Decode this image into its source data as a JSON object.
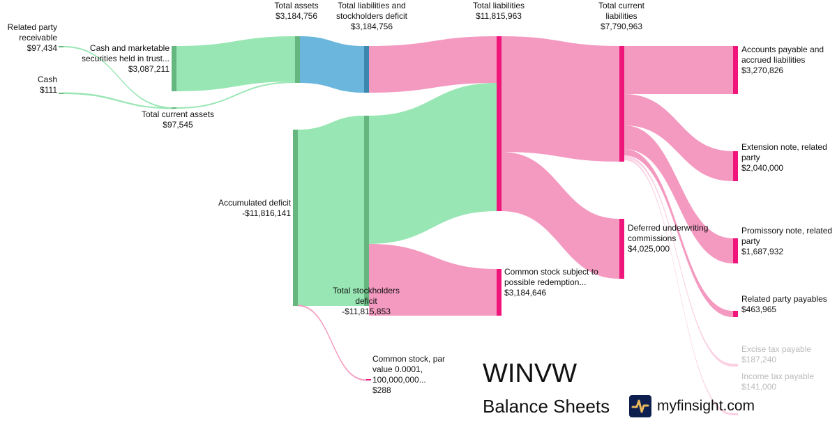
{
  "chart_data": {
    "type": "sankey",
    "title": "WINVW",
    "subtitle": "Balance Sheets",
    "colors": {
      "asset": "#98e6b3",
      "asset_node": "#66b77f",
      "total": "#6ab6dc",
      "total_node": "#3a88ae",
      "liability": "#f49ac0",
      "liability_node": "#f0157a"
    },
    "nodes": [
      {
        "id": "rpr",
        "label": "Related party receivable",
        "value": "$97,434"
      },
      {
        "id": "cash",
        "label": "Cash",
        "value": "$111"
      },
      {
        "id": "cmst",
        "label": "Cash and marketable securities held in trust...",
        "value": "$3,087,211"
      },
      {
        "id": "tca",
        "label": "Total current assets",
        "value": "$97,545"
      },
      {
        "id": "ta",
        "label": "Total assets",
        "value": "$3,184,756"
      },
      {
        "id": "accdef",
        "label": "Accumulated deficit",
        "value": "-$11,816,141"
      },
      {
        "id": "tlsd",
        "label": "Total liabilities and stockholders deficit",
        "value": "$3,184,756"
      },
      {
        "id": "tsd",
        "label": "Total stockholders deficit",
        "value": "-$11,815,853"
      },
      {
        "id": "cspar",
        "label": "Common stock, par value 0.0001, 100,000,000...",
        "value": "$288"
      },
      {
        "id": "tl",
        "label": "Total liabilities",
        "value": "$11,815,963"
      },
      {
        "id": "css",
        "label": "Common stock subject to possible redemption...",
        "value": "$3,184,646"
      },
      {
        "id": "tcl",
        "label": "Total current liabilities",
        "value": "$7,790,963"
      },
      {
        "id": "duc",
        "label": "Deferred underwriting commissions",
        "value": "$4,025,000"
      },
      {
        "id": "ap",
        "label": "Accounts payable and accrued liabilities",
        "value": "$3,270,826"
      },
      {
        "id": "ext",
        "label": "Extension note, related party",
        "value": "$2,040,000"
      },
      {
        "id": "prom",
        "label": "Promissory note, related party",
        "value": "$1,687,932"
      },
      {
        "id": "rpp",
        "label": "Related party payables",
        "value": "$463,965"
      },
      {
        "id": "excise",
        "label": "Excise tax payable",
        "value": "$187,240"
      },
      {
        "id": "income",
        "label": "Income tax payable",
        "value": "$141,000"
      }
    ],
    "links": [
      {
        "source": "rpr",
        "target": "tca",
        "value": 97434
      },
      {
        "source": "cash",
        "target": "tca",
        "value": 111
      },
      {
        "source": "tca",
        "target": "ta",
        "value": 97545
      },
      {
        "source": "cmst",
        "target": "ta",
        "value": 3087211
      },
      {
        "source": "ta",
        "target": "tlsd",
        "value": 3184756
      },
      {
        "source": "tlsd",
        "target": "tl",
        "value": 3184756
      },
      {
        "source": "accdef",
        "target": "tsd",
        "value": -11816141
      },
      {
        "source": "accdef",
        "target": "cspar",
        "value": 288
      },
      {
        "source": "tsd",
        "target": "tl",
        "value": 8631207
      },
      {
        "source": "tsd",
        "target": "css",
        "value": 3184646
      },
      {
        "source": "tl",
        "target": "tcl",
        "value": 7790963
      },
      {
        "source": "tl",
        "target": "duc",
        "value": 4025000
      },
      {
        "source": "tcl",
        "target": "ap",
        "value": 3270826
      },
      {
        "source": "tcl",
        "target": "ext",
        "value": 2040000
      },
      {
        "source": "tcl",
        "target": "prom",
        "value": 1687932
      },
      {
        "source": "tcl",
        "target": "rpp",
        "value": 463965
      },
      {
        "source": "tcl",
        "target": "excise",
        "value": 187240
      },
      {
        "source": "tcl",
        "target": "income",
        "value": 141000
      }
    ]
  },
  "branding": {
    "site": "myfinsight.com",
    "logo_icon": "pulse-line-icon"
  }
}
